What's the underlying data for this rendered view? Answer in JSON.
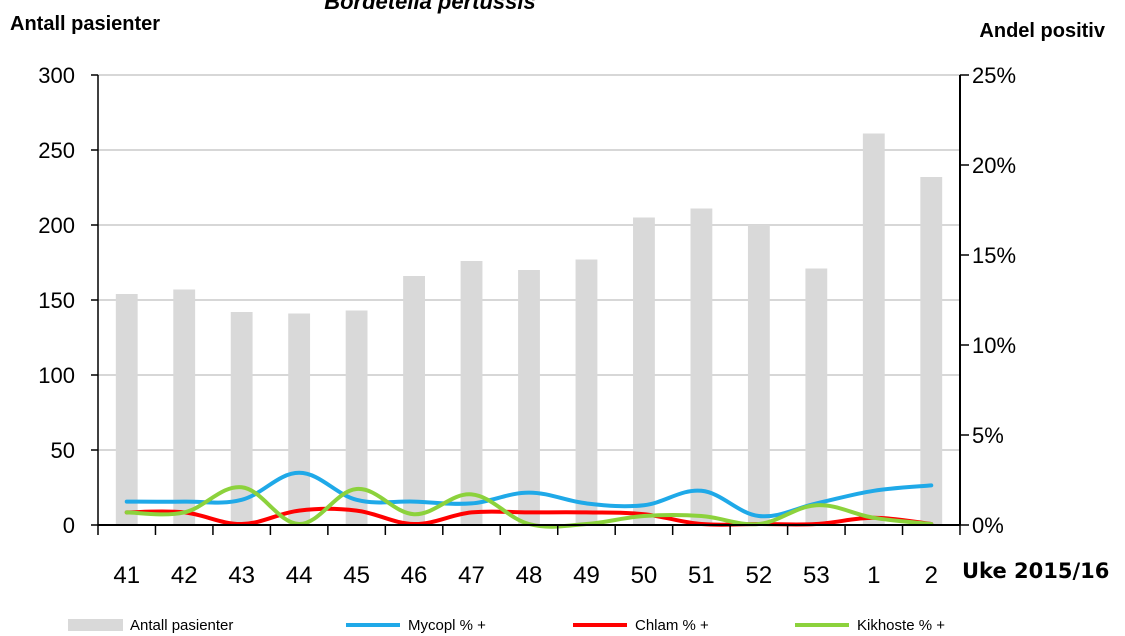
{
  "chart_data": {
    "type": "bar",
    "title": "Bordetella pertussis",
    "ylabel_left": "Antall pasienter",
    "ylabel_right": "Andel positiv",
    "xlabel": "Uke 2015/16",
    "categories": [
      "41",
      "42",
      "43",
      "44",
      "45",
      "46",
      "47",
      "48",
      "49",
      "50",
      "51",
      "52",
      "53",
      "1",
      "2"
    ],
    "ylim_left": [
      0,
      300
    ],
    "yticks_left": [
      "0",
      "50",
      "100",
      "150",
      "200",
      "250",
      "300"
    ],
    "ylim_right": [
      0,
      25
    ],
    "yticks_right": [
      "0%",
      "5%",
      "10%",
      "15%",
      "20%",
      "25%"
    ],
    "series": [
      {
        "name": "Antall pasienter",
        "type": "bar",
        "axis": "left",
        "color": "#d9d9d9",
        "values": [
          154,
          157,
          142,
          141,
          143,
          166,
          176,
          170,
          177,
          205,
          211,
          200,
          171,
          261,
          232
        ]
      },
      {
        "name": "Mycopl % +",
        "type": "line",
        "axis": "right",
        "color": "#1fa9e8",
        "values": [
          1.3,
          1.3,
          1.4,
          2.9,
          1.4,
          1.3,
          1.2,
          1.8,
          1.2,
          1.1,
          1.9,
          0.5,
          1.2,
          1.9,
          2.2
        ]
      },
      {
        "name": "Chlam % +",
        "type": "line",
        "axis": "right",
        "color": "#ff0000",
        "values": [
          0.7,
          0.7,
          0.0,
          0.8,
          0.8,
          0.0,
          0.7,
          0.7,
          0.7,
          0.6,
          0.0,
          0.0,
          0.0,
          0.4,
          0.0
        ]
      },
      {
        "name": "Kikhoste % +",
        "type": "line",
        "axis": "right",
        "color": "#8cd23c",
        "values": [
          0.7,
          0.7,
          2.1,
          0.0,
          2.0,
          0.6,
          1.7,
          0.0,
          0.0,
          0.5,
          0.5,
          0.0,
          1.1,
          0.4,
          0.0
        ]
      }
    ],
    "legend": {
      "placement": "bottom",
      "items": [
        "Antall pasienter",
        "Mycopl % +",
        "Chlam % +",
        "Kikhoste % +"
      ]
    },
    "grid": true
  }
}
